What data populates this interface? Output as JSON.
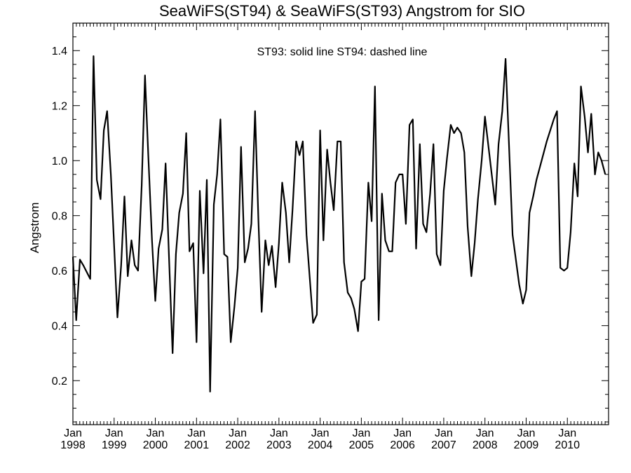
{
  "chart_data": {
    "type": "line",
    "title": "SeaWiFS(ST94) & SeaWiFS(ST93)  Angstrom for SIO",
    "annotation": "ST93: solid line   ST94: dashed line",
    "ylabel": "Angstrom",
    "xlabel": "",
    "xlim": [
      1998.0,
      2011.0
    ],
    "ylim": [
      0.04,
      1.5
    ],
    "yticks": [
      0.2,
      0.4,
      0.6,
      0.8,
      1.0,
      1.2,
      1.4
    ],
    "ytick_labels": [
      "0.2",
      "0.4",
      "0.6",
      "0.8",
      "1.0",
      "1.2",
      "1.4"
    ],
    "xticks": [
      {
        "month": "Jan",
        "year": "1998",
        "x": 1998
      },
      {
        "month": "Jan",
        "year": "1999",
        "x": 1999
      },
      {
        "month": "Jan",
        "year": "2000",
        "x": 2000
      },
      {
        "month": "Jan",
        "year": "2001",
        "x": 2001
      },
      {
        "month": "Jan",
        "year": "2002",
        "x": 2002
      },
      {
        "month": "Jan",
        "year": "2003",
        "x": 2003
      },
      {
        "month": "Jan",
        "year": "2004",
        "x": 2004
      },
      {
        "month": "Jan",
        "year": "2005",
        "x": 2005
      },
      {
        "month": "Jan",
        "year": "2006",
        "x": 2006
      },
      {
        "month": "Jan",
        "year": "2007",
        "x": 2007
      },
      {
        "month": "Jan",
        "year": "2008",
        "x": 2008
      },
      {
        "month": "Jan",
        "year": "2009",
        "x": 2009
      },
      {
        "month": "Jan",
        "year": "2010",
        "x": 2010
      }
    ],
    "grid": false,
    "series": [
      {
        "name": "ST93",
        "style": "solid",
        "color": "#000000",
        "x": [
          1998.0,
          1998.08,
          1998.17,
          1998.25,
          1998.42,
          1998.5,
          1998.58,
          1998.67,
          1998.75,
          1998.83,
          1998.92,
          1999.0,
          1999.08,
          1999.17,
          1999.25,
          1999.33,
          1999.42,
          1999.5,
          1999.58,
          1999.67,
          1999.75,
          1999.83,
          1999.92,
          2000.0,
          2000.08,
          2000.17,
          2000.25,
          2000.33,
          2000.42,
          2000.5,
          2000.58,
          2000.67,
          2000.75,
          2000.83,
          2000.92,
          2001.0,
          2001.08,
          2001.17,
          2001.25,
          2001.33,
          2001.42,
          2001.5,
          2001.58,
          2001.67,
          2001.75,
          2001.83,
          2001.92,
          2002.0,
          2002.08,
          2002.17,
          2002.25,
          2002.33,
          2002.42,
          2002.5,
          2002.58,
          2002.67,
          2002.75,
          2002.83,
          2002.92,
          2003.0,
          2003.08,
          2003.17,
          2003.25,
          2003.33,
          2003.42,
          2003.5,
          2003.58,
          2003.67,
          2003.75,
          2003.83,
          2003.92,
          2004.0,
          2004.08,
          2004.17,
          2004.25,
          2004.33,
          2004.42,
          2004.5,
          2004.58,
          2004.67,
          2004.75,
          2004.83,
          2004.92,
          2005.0,
          2005.08,
          2005.17,
          2005.25,
          2005.33,
          2005.42,
          2005.5,
          2005.58,
          2005.67,
          2005.75,
          2005.83,
          2005.92,
          2006.0,
          2006.08,
          2006.17,
          2006.25,
          2006.33,
          2006.42,
          2006.5,
          2006.58,
          2006.67,
          2006.75,
          2006.83,
          2006.92,
          2007.0,
          2007.08,
          2007.17,
          2007.25,
          2007.33,
          2007.42,
          2007.5,
          2007.58,
          2007.67,
          2007.75,
          2007.83,
          2007.92,
          2008.0,
          2008.25,
          2008.33,
          2008.42,
          2008.5,
          2008.67,
          2008.75,
          2008.83,
          2008.92,
          2009.0,
          2009.08,
          2009.17,
          2009.25,
          2009.5,
          2009.67,
          2009.75,
          2009.83,
          2009.92,
          2010.0,
          2010.08,
          2010.17,
          2010.25,
          2010.33,
          2010.42,
          2010.5,
          2010.58,
          2010.67,
          2010.75,
          2010.83,
          2010.92
        ],
        "y": [
          0.65,
          0.42,
          0.64,
          0.62,
          0.57,
          1.38,
          0.93,
          0.86,
          1.11,
          1.18,
          0.95,
          0.69,
          0.43,
          0.62,
          0.87,
          0.58,
          0.71,
          0.62,
          0.6,
          0.91,
          1.31,
          1.02,
          0.71,
          0.49,
          0.68,
          0.75,
          0.99,
          0.66,
          0.3,
          0.66,
          0.81,
          0.88,
          1.1,
          0.67,
          0.7,
          0.34,
          0.89,
          0.59,
          0.93,
          0.16,
          0.84,
          0.95,
          1.15,
          0.66,
          0.65,
          0.34,
          0.47,
          0.61,
          1.05,
          0.63,
          0.68,
          0.77,
          1.18,
          0.79,
          0.45,
          0.71,
          0.62,
          0.69,
          0.54,
          0.7,
          0.92,
          0.81,
          0.63,
          0.82,
          1.07,
          1.02,
          1.07,
          0.73,
          0.57,
          0.41,
          0.44,
          1.11,
          0.71,
          1.04,
          0.92,
          0.82,
          1.07,
          1.07,
          0.63,
          0.52,
          0.5,
          0.46,
          0.38,
          0.56,
          0.57,
          0.92,
          0.78,
          1.27,
          0.42,
          0.88,
          0.71,
          0.67,
          0.67,
          0.92,
          0.95,
          0.95,
          0.77,
          1.13,
          1.15,
          0.68,
          1.06,
          0.77,
          0.74,
          0.88,
          1.06,
          0.66,
          0.62,
          0.89,
          1.01,
          1.13,
          1.1,
          1.12,
          1.1,
          1.03,
          0.76,
          0.58,
          0.7,
          0.86,
          1.0,
          1.16,
          0.84,
          1.06,
          1.18,
          1.37,
          0.73,
          0.64,
          0.55,
          0.48,
          0.53,
          0.81,
          0.87,
          0.93,
          1.07,
          1.15,
          1.18,
          0.61,
          0.6,
          0.61,
          0.74,
          0.99,
          0.87,
          1.27,
          1.16,
          1.03,
          1.17,
          0.95,
          1.03,
          1.0,
          0.95
        ]
      }
    ]
  }
}
